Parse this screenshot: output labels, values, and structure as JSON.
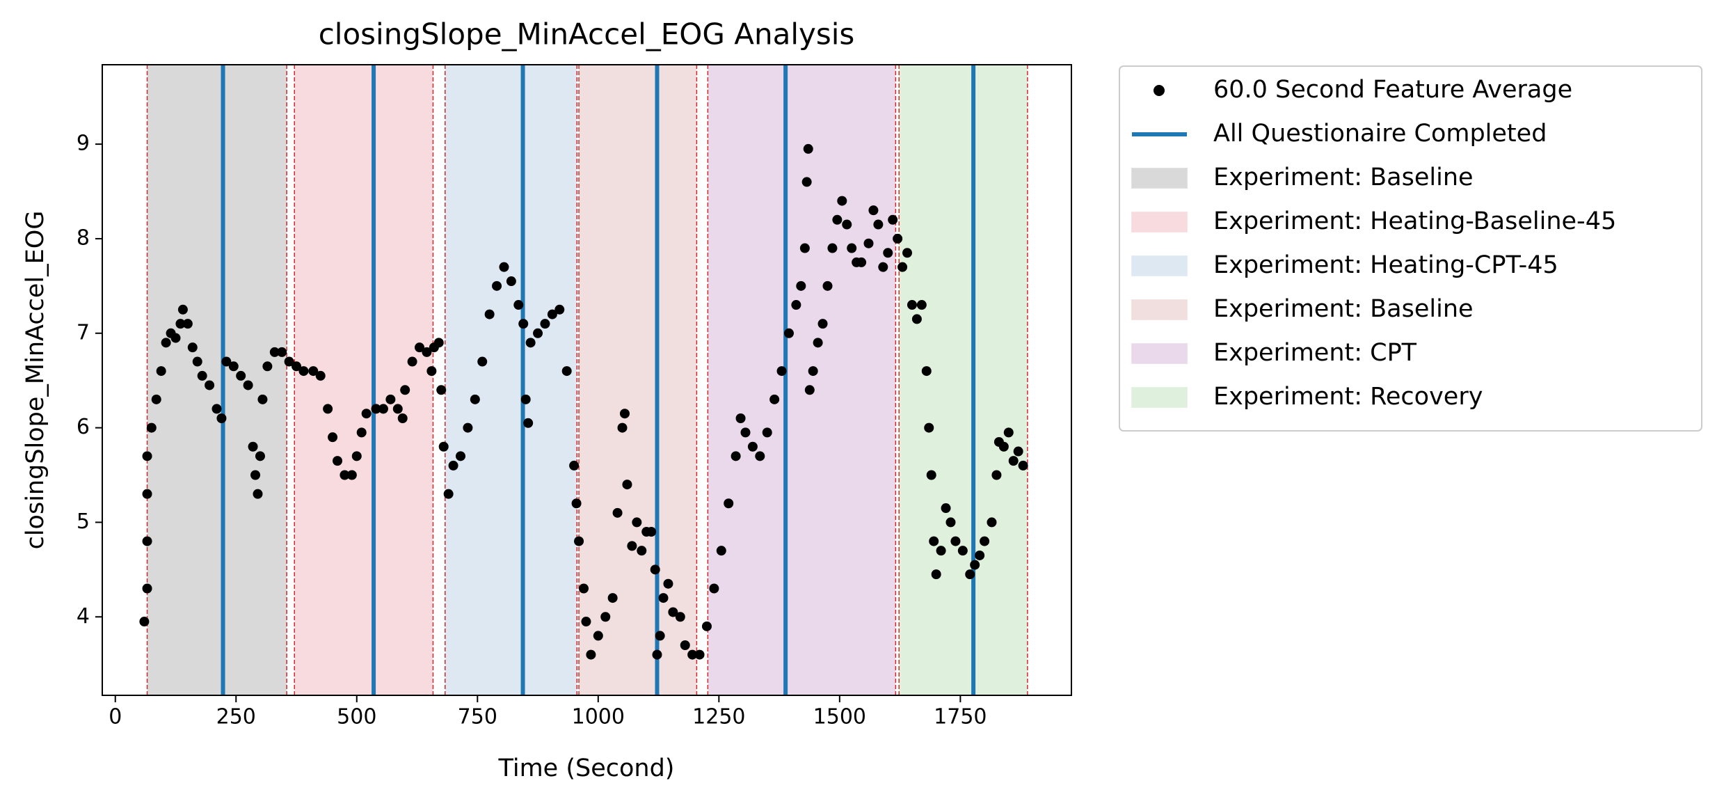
{
  "chart_data": {
    "type": "scatter",
    "title": "closingSlope_MinAccel_EOG Analysis",
    "x_label": "Time (Second)",
    "y_label": "closingSlope_MinAccel_EOG",
    "xlim": [
      -27,
      1980
    ],
    "ylim": [
      3.17,
      9.84
    ],
    "xticks": [
      0,
      250,
      500,
      750,
      1000,
      1250,
      1500,
      1750
    ],
    "yticks": [
      4,
      5,
      6,
      7,
      8,
      9
    ],
    "grid": false,
    "legend": "outside-upper-right",
    "series": [
      {
        "name": "60.0 Second Feature Average",
        "color": "#000000",
        "x": [
          60,
          66,
          66,
          66,
          66,
          75,
          85,
          95,
          105,
          115,
          125,
          135,
          140,
          150,
          160,
          170,
          180,
          195,
          210,
          220,
          230,
          245,
          260,
          275,
          285,
          290,
          295,
          300,
          305,
          315,
          330,
          345,
          360,
          375,
          390,
          410,
          425,
          440,
          450,
          460,
          475,
          490,
          500,
          510,
          520,
          540,
          555,
          570,
          585,
          595,
          600,
          615,
          630,
          645,
          655,
          660,
          670,
          675,
          680,
          690,
          700,
          715,
          730,
          745,
          760,
          775,
          790,
          805,
          820,
          835,
          845,
          850,
          855,
          860,
          875,
          890,
          905,
          920,
          935,
          950,
          955,
          960,
          970,
          975,
          985,
          1000,
          1015,
          1030,
          1040,
          1050,
          1055,
          1060,
          1070,
          1080,
          1090,
          1100,
          1110,
          1118,
          1122,
          1128,
          1135,
          1145,
          1155,
          1170,
          1180,
          1195,
          1210,
          1225,
          1240,
          1255,
          1270,
          1285,
          1295,
          1305,
          1320,
          1335,
          1350,
          1365,
          1380,
          1395,
          1410,
          1420,
          1428,
          1432,
          1435,
          1438,
          1445,
          1455,
          1465,
          1475,
          1485,
          1495,
          1505,
          1515,
          1525,
          1535,
          1545,
          1560,
          1570,
          1580,
          1590,
          1600,
          1610,
          1620,
          1630,
          1640,
          1650,
          1660,
          1670,
          1680,
          1685,
          1690,
          1695,
          1700,
          1710,
          1720,
          1730,
          1740,
          1755,
          1770,
          1780,
          1790,
          1800,
          1815,
          1825,
          1830,
          1840,
          1850,
          1860,
          1870,
          1880
        ],
        "values": [
          3.95,
          4.3,
          4.8,
          5.3,
          5.7,
          6.0,
          6.3,
          6.6,
          6.9,
          7.0,
          6.95,
          7.1,
          7.25,
          7.1,
          6.85,
          6.7,
          6.55,
          6.45,
          6.2,
          6.1,
          6.7,
          6.65,
          6.55,
          6.45,
          5.8,
          5.5,
          5.3,
          5.7,
          6.3,
          6.65,
          6.8,
          6.8,
          6.7,
          6.65,
          6.6,
          6.6,
          6.55,
          6.2,
          5.9,
          5.65,
          5.5,
          5.5,
          5.7,
          5.95,
          6.15,
          6.2,
          6.2,
          6.3,
          6.2,
          6.1,
          6.4,
          6.7,
          6.85,
          6.8,
          6.6,
          6.85,
          6.9,
          6.4,
          5.8,
          5.3,
          5.6,
          5.7,
          6.0,
          6.3,
          6.7,
          7.2,
          7.5,
          7.7,
          7.55,
          7.3,
          7.1,
          6.3,
          6.05,
          6.9,
          7.0,
          7.1,
          7.2,
          7.25,
          6.6,
          5.6,
          5.2,
          4.8,
          4.3,
          3.95,
          3.6,
          3.8,
          4.0,
          4.2,
          5.1,
          6.0,
          6.15,
          5.4,
          4.75,
          5.0,
          4.7,
          4.9,
          4.9,
          4.5,
          3.6,
          3.8,
          4.2,
          4.35,
          4.05,
          4.0,
          3.7,
          3.6,
          3.6,
          3.9,
          4.3,
          4.7,
          5.2,
          5.7,
          6.1,
          5.95,
          5.8,
          5.7,
          5.95,
          6.3,
          6.6,
          7.0,
          7.3,
          7.5,
          7.9,
          8.6,
          8.95,
          6.4,
          6.6,
          6.9,
          7.1,
          7.5,
          7.9,
          8.2,
          8.4,
          8.15,
          7.9,
          7.75,
          7.75,
          7.95,
          8.3,
          8.15,
          7.7,
          7.85,
          8.2,
          8.0,
          7.7,
          7.85,
          7.3,
          7.15,
          7.3,
          6.6,
          6.0,
          5.5,
          4.8,
          4.45,
          4.7,
          5.15,
          5.0,
          4.8,
          4.7,
          4.45,
          4.55,
          4.65,
          4.8,
          5.0,
          5.5,
          5.85,
          5.8,
          5.95,
          5.65,
          5.75,
          5.6
        ]
      }
    ],
    "events": {
      "name": "All Questionaire Completed",
      "color": "#1f77b4",
      "x": [
        223,
        535,
        844,
        1122,
        1388,
        1777
      ]
    },
    "boundary_color": "#d62728",
    "regions": [
      {
        "name": "Experiment: Baseline",
        "start": 66,
        "end": 355,
        "color": "#d9d9d9"
      },
      {
        "name": "Experiment: Heating-Baseline-45",
        "start": 371,
        "end": 658,
        "color": "#f8dbde"
      },
      {
        "name": "Experiment: Heating-CPT-45",
        "start": 683,
        "end": 956,
        "color": "#dde8f3"
      },
      {
        "name": "Experiment: Baseline",
        "start": 960,
        "end": 1204,
        "color": "#f1dfdf"
      },
      {
        "name": "Experiment: CPT",
        "start": 1227,
        "end": 1616,
        "color": "#ead8eb"
      },
      {
        "name": "Experiment: Recovery",
        "start": 1623,
        "end": 1889,
        "color": "#dff0dd"
      }
    ]
  }
}
